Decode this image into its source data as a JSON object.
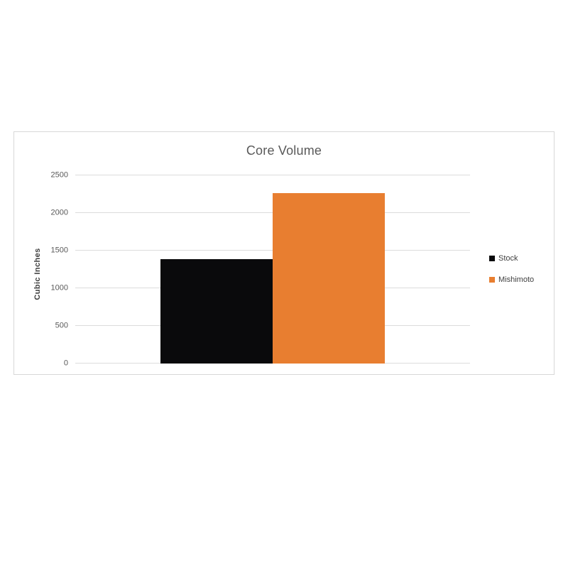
{
  "chart_data": {
    "type": "bar",
    "title": "Core Volume",
    "xlabel": "",
    "ylabel": "Cubic Inches",
    "categories": [
      "Core Volume"
    ],
    "series": [
      {
        "name": "Stock",
        "values": [
          1390
        ],
        "color": "#0a0a0c"
      },
      {
        "name": "Mishimoto",
        "values": [
          2260
        ],
        "color": "#e87e30"
      }
    ],
    "ylim": [
      0,
      2500
    ],
    "yticks": [
      0,
      500,
      1000,
      1500,
      2000,
      2500
    ],
    "grid": true,
    "legend_position": "right"
  },
  "colors": {
    "gridline": "#dcdcdc",
    "axis_text": "#595959",
    "title_text": "#595959",
    "panel_border": "#d8d8d8",
    "background": "#ffffff"
  }
}
